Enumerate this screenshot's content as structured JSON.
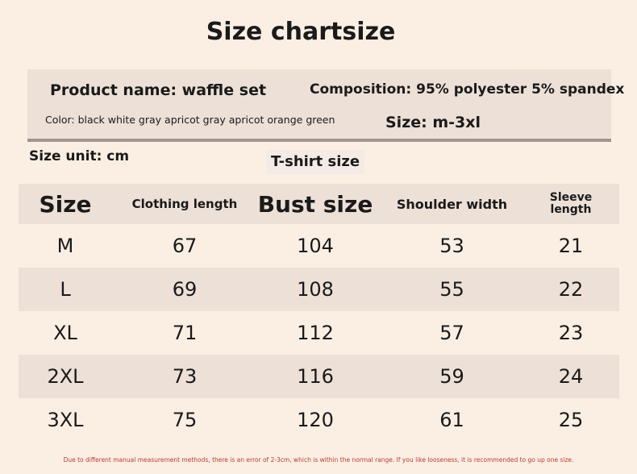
{
  "title": "Size chartsize",
  "info": {
    "product": "Product name: waffle set",
    "composition": "Composition: 95% polyester 5% spandex",
    "color": "Color: black white gray apricot gray apricot orange green",
    "size_range": "Size: m-3xl"
  },
  "size_unit": "Size unit: cm",
  "table_label": "T-shirt size",
  "table": {
    "headers": [
      "Size",
      "Clothing length",
      "Bust size",
      "Shoulder width",
      "Sleeve length"
    ],
    "rows": [
      [
        "M",
        "67",
        "104",
        "53",
        "21"
      ],
      [
        "L",
        "69",
        "108",
        "55",
        "22"
      ],
      [
        "XL",
        "71",
        "112",
        "57",
        "23"
      ],
      [
        "2XL",
        "73",
        "116",
        "59",
        "24"
      ],
      [
        "3XL",
        "75",
        "120",
        "61",
        "25"
      ]
    ]
  },
  "footnote": "Due to different manual measurement methods, there is an error of 2-3cm, which is within the normal range. If you like looseness, it is recommended to go up one size.",
  "colors": {
    "background": "#fbefe4",
    "band": "#ece0d7",
    "rule": "#a49490",
    "footnote": "#c0392b"
  }
}
